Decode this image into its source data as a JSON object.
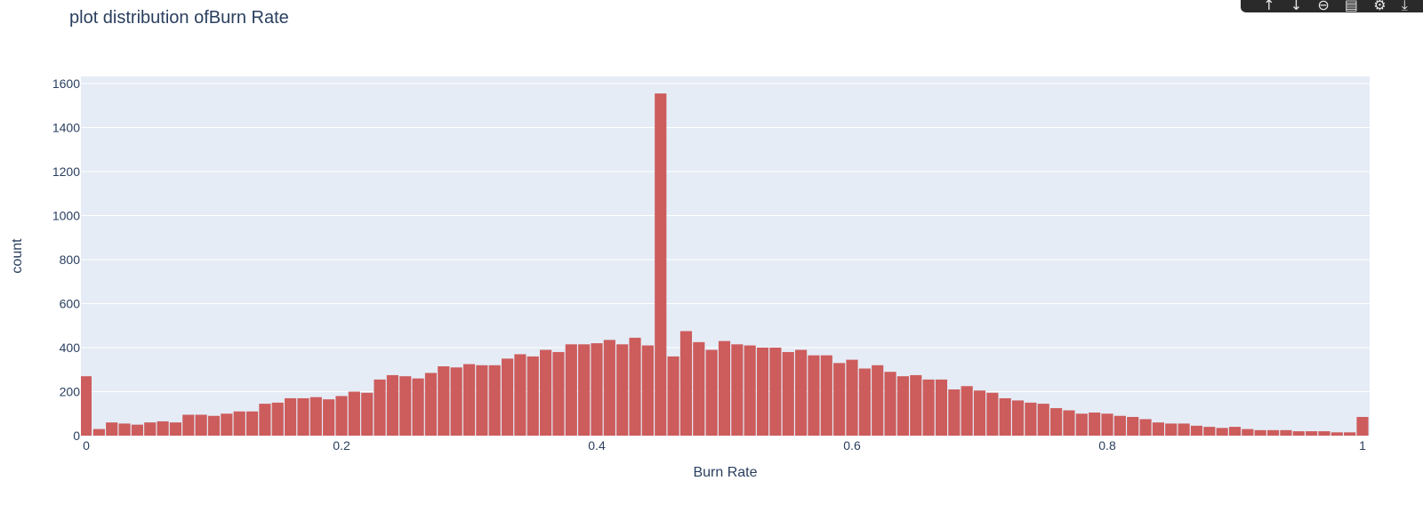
{
  "chart_data": {
    "type": "bar",
    "title": "plot distribution ofBurn Rate",
    "xlabel": "Burn Rate",
    "ylabel": "count",
    "xlim": [
      0,
      1
    ],
    "ylim": [
      0,
      1600
    ],
    "x_ticks": [
      "0",
      "0.2",
      "0.4",
      "0.6",
      "0.8",
      "1"
    ],
    "y_ticks": [
      "0",
      "200",
      "400",
      "600",
      "800",
      "1000",
      "1200",
      "1400",
      "1600"
    ],
    "bin_width": 0.01,
    "x": [
      0.0,
      0.01,
      0.02,
      0.03,
      0.04,
      0.05,
      0.06,
      0.07,
      0.08,
      0.09,
      0.1,
      0.11,
      0.12,
      0.13,
      0.14,
      0.15,
      0.16,
      0.17,
      0.18,
      0.19,
      0.2,
      0.21,
      0.22,
      0.23,
      0.24,
      0.25,
      0.26,
      0.27,
      0.28,
      0.29,
      0.3,
      0.31,
      0.32,
      0.33,
      0.34,
      0.35,
      0.36,
      0.37,
      0.38,
      0.39,
      0.4,
      0.41,
      0.42,
      0.43,
      0.44,
      0.45,
      0.46,
      0.47,
      0.48,
      0.49,
      0.5,
      0.51,
      0.52,
      0.53,
      0.54,
      0.55,
      0.56,
      0.57,
      0.58,
      0.59,
      0.6,
      0.61,
      0.62,
      0.63,
      0.64,
      0.65,
      0.66,
      0.67,
      0.68,
      0.69,
      0.7,
      0.71,
      0.72,
      0.73,
      0.74,
      0.75,
      0.76,
      0.77,
      0.78,
      0.79,
      0.8,
      0.81,
      0.82,
      0.83,
      0.84,
      0.85,
      0.86,
      0.87,
      0.88,
      0.89,
      0.9,
      0.91,
      0.92,
      0.93,
      0.94,
      0.95,
      0.96,
      0.97,
      0.98,
      0.99,
      1.0
    ],
    "values": [
      270,
      30,
      60,
      55,
      50,
      60,
      65,
      60,
      95,
      95,
      90,
      100,
      110,
      110,
      145,
      150,
      170,
      170,
      175,
      165,
      180,
      200,
      195,
      255,
      275,
      270,
      260,
      285,
      315,
      310,
      325,
      320,
      320,
      350,
      370,
      360,
      390,
      380,
      415,
      415,
      420,
      435,
      415,
      445,
      410,
      1555,
      360,
      475,
      425,
      390,
      430,
      415,
      410,
      400,
      400,
      380,
      390,
      365,
      365,
      330,
      345,
      305,
      320,
      290,
      270,
      275,
      255,
      255,
      210,
      225,
      205,
      195,
      170,
      160,
      150,
      145,
      125,
      115,
      100,
      105,
      100,
      90,
      85,
      75,
      60,
      55,
      55,
      45,
      40,
      35,
      40,
      30,
      25,
      25,
      25,
      20,
      20,
      20,
      15,
      15,
      85
    ],
    "bar_color": "#cd5c5c",
    "plot_bg": "#e5ecf6",
    "grid": true
  },
  "modebar": {
    "icons": [
      "arrow-up-icon",
      "arrow-down-icon",
      "link-icon",
      "document-icon",
      "gear-icon",
      "export-icon"
    ],
    "glyphs": [
      "↑",
      "↓",
      "⊖",
      "▤",
      "⚙",
      "⤓"
    ]
  }
}
